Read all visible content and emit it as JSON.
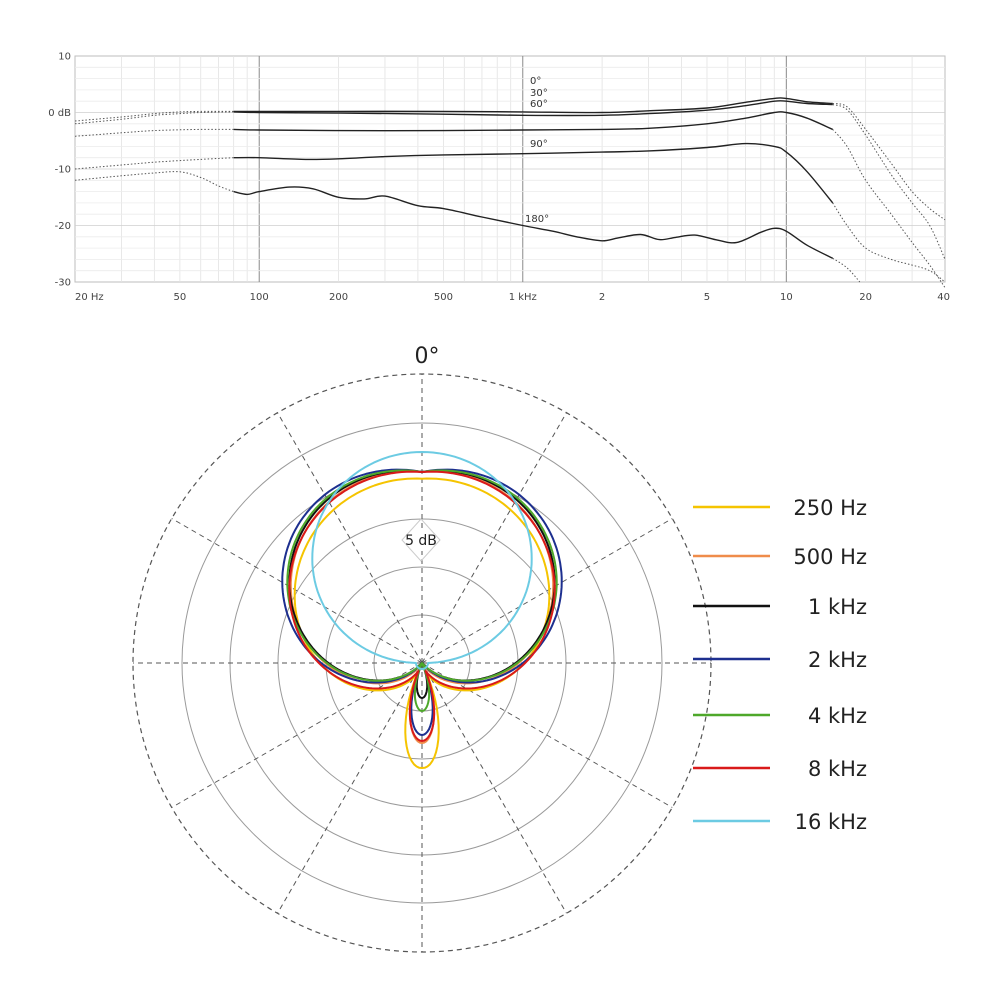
{
  "chart_data": [
    {
      "type": "line",
      "x_scale": "log",
      "xlim": [
        20,
        40000
      ],
      "ylim": [
        -30,
        10
      ],
      "x_ticks": [
        {
          "value": 20,
          "label": "20 Hz"
        },
        {
          "value": 50,
          "label": "50"
        },
        {
          "value": 100,
          "label": "100"
        },
        {
          "value": 200,
          "label": "200"
        },
        {
          "value": 500,
          "label": "500"
        },
        {
          "value": 1000,
          "label": "1 kHz"
        },
        {
          "value": 2000,
          "label": "2"
        },
        {
          "value": 5000,
          "label": "5"
        },
        {
          "value": 10000,
          "label": "10"
        },
        {
          "value": 20000,
          "label": "20"
        },
        {
          "value": 40000,
          "label": "40"
        }
      ],
      "y_ticks": [
        {
          "value": 10,
          "label": "10"
        },
        {
          "value": 0,
          "label": "0 dB"
        },
        {
          "value": -10,
          "label": "-10"
        },
        {
          "value": -20,
          "label": "-20"
        },
        {
          "value": -30,
          "label": "-30"
        }
      ],
      "grid": true,
      "series": [
        {
          "name": "0°",
          "solid": [
            [
              80,
              0.2
            ],
            [
              100,
              0.2
            ],
            [
              200,
              0.2
            ],
            [
              500,
              0.2
            ],
            [
              1000,
              0.1
            ],
            [
              2000,
              0
            ],
            [
              3000,
              0.3
            ],
            [
              5000,
              0.8
            ],
            [
              7000,
              1.8
            ],
            [
              9000,
              2.5
            ],
            [
              10000,
              2.5
            ],
            [
              12000,
              1.9
            ],
            [
              15000,
              1.6
            ]
          ],
          "dotted_low": [
            [
              20,
              -1.5
            ],
            [
              30,
              -0.8
            ],
            [
              40,
              -0.2
            ],
            [
              50,
              0.1
            ],
            [
              60,
              0.2
            ],
            [
              80,
              0.2
            ]
          ],
          "dotted_high": [
            [
              15000,
              1.6
            ],
            [
              17000,
              1
            ],
            [
              20000,
              -3
            ],
            [
              25000,
              -9
            ],
            [
              30000,
              -14
            ],
            [
              35000,
              -17
            ],
            [
              40000,
              -19
            ]
          ]
        },
        {
          "name": "30°",
          "solid": [
            [
              80,
              0.1
            ],
            [
              100,
              0
            ],
            [
              200,
              -0.1
            ],
            [
              500,
              -0.3
            ],
            [
              1000,
              -0.5
            ],
            [
              2000,
              -0.5
            ],
            [
              3000,
              -0.2
            ],
            [
              5000,
              0.4
            ],
            [
              7000,
              1.2
            ],
            [
              9000,
              2
            ],
            [
              10000,
              2
            ],
            [
              12000,
              1.6
            ],
            [
              15000,
              1.4
            ]
          ],
          "dotted_low": [
            [
              20,
              -2
            ],
            [
              30,
              -1.2
            ],
            [
              40,
              -0.5
            ],
            [
              50,
              -0.2
            ],
            [
              60,
              0
            ],
            [
              80,
              0.1
            ]
          ],
          "dotted_high": [
            [
              15000,
              1.4
            ],
            [
              17000,
              0.5
            ],
            [
              20000,
              -4
            ],
            [
              25000,
              -11
            ],
            [
              30000,
              -16
            ],
            [
              35000,
              -20
            ],
            [
              40000,
              -26
            ]
          ]
        },
        {
          "name": "60°",
          "solid": [
            [
              80,
              -3
            ],
            [
              100,
              -3.1
            ],
            [
              200,
              -3.2
            ],
            [
              500,
              -3.2
            ],
            [
              1000,
              -3.1
            ],
            [
              2000,
              -3
            ],
            [
              3000,
              -2.8
            ],
            [
              5000,
              -2
            ],
            [
              7000,
              -1
            ],
            [
              9000,
              0
            ],
            [
              10000,
              0
            ],
            [
              12000,
              -1
            ],
            [
              15000,
              -3
            ]
          ],
          "dotted_low": [
            [
              20,
              -4.2
            ],
            [
              30,
              -3.6
            ],
            [
              40,
              -3.2
            ],
            [
              60,
              -3
            ],
            [
              80,
              -3
            ]
          ],
          "dotted_high": [
            [
              15000,
              -3
            ],
            [
              17000,
              -6
            ],
            [
              20000,
              -12
            ],
            [
              25000,
              -18
            ],
            [
              30000,
              -23
            ],
            [
              35000,
              -27
            ],
            [
              40000,
              -31
            ]
          ]
        },
        {
          "name": "90°",
          "solid": [
            [
              80,
              -8
            ],
            [
              100,
              -8
            ],
            [
              150,
              -8.3
            ],
            [
              200,
              -8.2
            ],
            [
              300,
              -7.8
            ],
            [
              500,
              -7.5
            ],
            [
              1000,
              -7.3
            ],
            [
              2000,
              -7
            ],
            [
              3000,
              -6.8
            ],
            [
              5000,
              -6.2
            ],
            [
              7000,
              -5.5
            ],
            [
              9000,
              -6
            ],
            [
              10000,
              -7
            ],
            [
              12000,
              -10.5
            ],
            [
              15000,
              -16
            ]
          ],
          "dotted_low": [
            [
              20,
              -10
            ],
            [
              30,
              -9.3
            ],
            [
              40,
              -8.8
            ],
            [
              60,
              -8.3
            ],
            [
              80,
              -8
            ]
          ],
          "dotted_high": [
            [
              15000,
              -16
            ],
            [
              17000,
              -20
            ],
            [
              20000,
              -24
            ],
            [
              25000,
              -26
            ],
            [
              30000,
              -27
            ],
            [
              35000,
              -28
            ],
            [
              40000,
              -30
            ]
          ]
        },
        {
          "name": "180°",
          "solid": [
            [
              80,
              -14
            ],
            [
              90,
              -14.5
            ],
            [
              100,
              -14
            ],
            [
              130,
              -13.2
            ],
            [
              160,
              -13.5
            ],
            [
              200,
              -15
            ],
            [
              250,
              -15.3
            ],
            [
              300,
              -14.8
            ],
            [
              400,
              -16.5
            ],
            [
              500,
              -17
            ],
            [
              700,
              -18.5
            ],
            [
              1000,
              -20
            ],
            [
              1300,
              -21
            ],
            [
              1600,
              -22
            ],
            [
              2000,
              -22.7
            ],
            [
              2300,
              -22.2
            ],
            [
              2800,
              -21.6
            ],
            [
              3300,
              -22.5
            ],
            [
              3800,
              -22.1
            ],
            [
              4500,
              -21.7
            ],
            [
              5500,
              -22.6
            ],
            [
              6500,
              -23
            ],
            [
              8000,
              -21.2
            ],
            [
              9000,
              -20.5
            ],
            [
              10000,
              -21
            ],
            [
              12000,
              -23.5
            ],
            [
              15000,
              -25.8
            ]
          ],
          "dotted_low": [
            [
              20,
              -12
            ],
            [
              30,
              -11.2
            ],
            [
              40,
              -10.7
            ],
            [
              50,
              -10.5
            ],
            [
              60,
              -11.5
            ],
            [
              70,
              -13
            ],
            [
              80,
              -14
            ]
          ],
          "dotted_high": [
            [
              15000,
              -25.8
            ],
            [
              17000,
              -27.5
            ],
            [
              19000,
              -30
            ]
          ]
        }
      ]
    },
    {
      "type": "polar",
      "angle_label": "0°",
      "ring_label": "5 dB",
      "rings": 6,
      "spokes_deg": 30,
      "series": [
        {
          "name": "250 Hz",
          "color": "#f5c400"
        },
        {
          "name": "500 Hz",
          "color": "#ef8c4a"
        },
        {
          "name": "1 kHz",
          "color": "#111111"
        },
        {
          "name": "2 kHz",
          "color": "#1d2f8f"
        },
        {
          "name": "4 kHz",
          "color": "#4ea82a"
        },
        {
          "name": "8 kHz",
          "color": "#d91a1a"
        },
        {
          "name": "16 kHz",
          "color": "#6ccbe3"
        }
      ]
    }
  ]
}
